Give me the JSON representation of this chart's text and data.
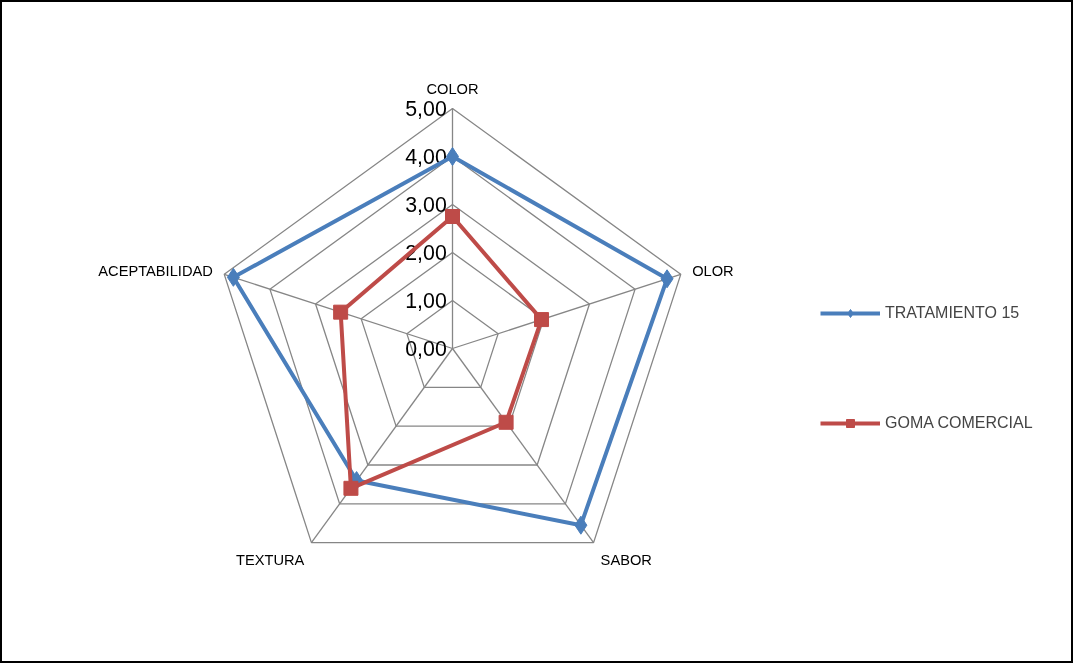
{
  "chart_data": {
    "type": "radar",
    "categories": [
      "COLOR",
      "OLOR",
      "SABOR",
      "TEXTURA",
      "ACEPTABILIDAD"
    ],
    "series": [
      {
        "name": "TRATAMIENTO 15",
        "color": "#4a7ebb",
        "marker": "diamond",
        "values": [
          4.0,
          4.7,
          4.55,
          3.4,
          4.8
        ]
      },
      {
        "name": "GOMA COMERCIAL",
        "color": "#be4b48",
        "marker": "square",
        "values": [
          2.75,
          1.95,
          1.9,
          3.6,
          2.45
        ]
      }
    ],
    "ylim": [
      0,
      5
    ],
    "yticks": [
      {
        "value": 0,
        "label": "0,00"
      },
      {
        "value": 1,
        "label": "1,00"
      },
      {
        "value": 2,
        "label": "2,00"
      },
      {
        "value": 3,
        "label": "3,00"
      },
      {
        "value": 4,
        "label": "4,00"
      },
      {
        "value": 5,
        "label": "5,00"
      }
    ],
    "grid": true,
    "legend": "right",
    "line_style": "solid"
  }
}
